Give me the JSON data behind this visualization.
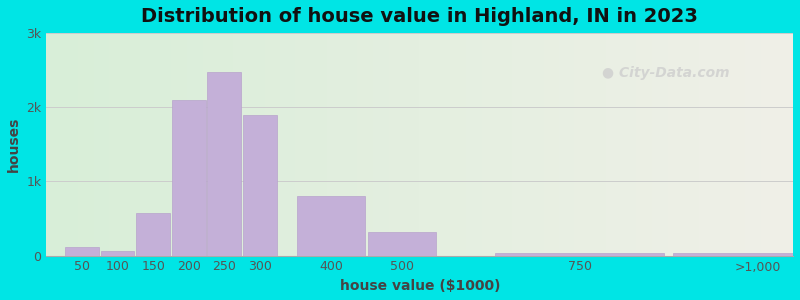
{
  "title": "Distribution of house value in Highland, IN in 2023",
  "xlabel": "house value ($1000)",
  "ylabel": "houses",
  "bar_color": "#c4b0d8",
  "bar_edgecolor": "#b8a4cc",
  "background_outer": "#00e5e5",
  "bar_left_edges": [
    25,
    75,
    125,
    175,
    225,
    275,
    350,
    450,
    625,
    875
  ],
  "bar_widths": [
    50,
    50,
    50,
    50,
    50,
    50,
    100,
    100,
    250,
    250
  ],
  "values": [
    120,
    60,
    580,
    2100,
    2480,
    1900,
    800,
    320,
    30,
    40
  ],
  "ylim": [
    0,
    3000
  ],
  "yticks": [
    0,
    1000,
    2000,
    3000
  ],
  "ytick_labels": [
    "0",
    "1k",
    "2k",
    "3k"
  ],
  "xtick_positions": [
    50,
    100,
    150,
    200,
    250,
    300,
    400,
    500,
    750,
    1000
  ],
  "xtick_labels": [
    "50",
    "100",
    "150",
    "200",
    "250",
    "300",
    "400",
    "500",
    "750",
    ">1,000"
  ],
  "xlim": [
    0,
    1050
  ],
  "watermark": "City-Data.com",
  "title_fontsize": 14,
  "axis_label_fontsize": 10,
  "tick_fontsize": 9
}
